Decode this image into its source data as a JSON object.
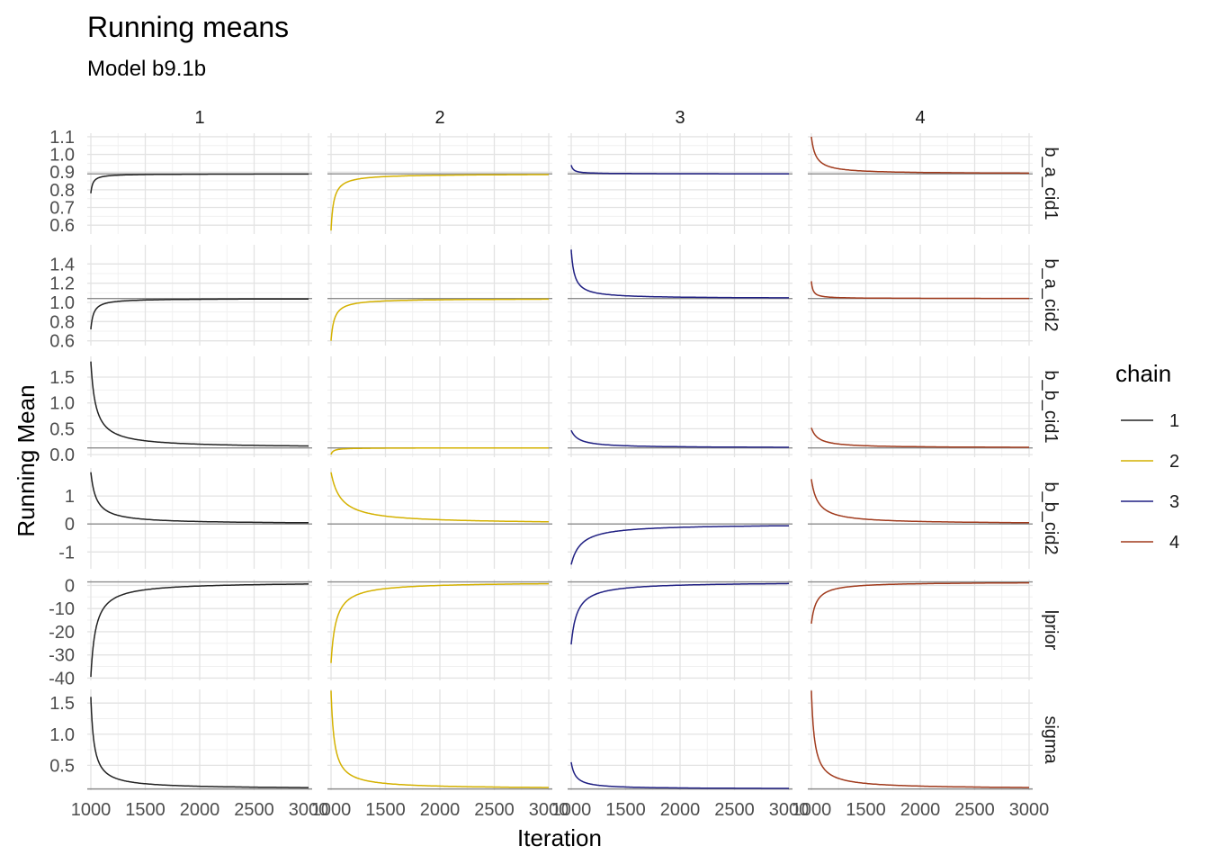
{
  "chart_data": {
    "type": "line",
    "title": "Running means",
    "subtitle": "Model b9.1b",
    "xlabel": "Iteration",
    "ylabel": "Running Mean",
    "x_range": [
      1000,
      3000
    ],
    "x_ticks": [
      1000,
      1500,
      2000,
      2500,
      3000
    ],
    "x_tick_labels": [
      "1000",
      "1500",
      "2000",
      "2500",
      "3000"
    ],
    "grid": true,
    "legend": {
      "title": "chain",
      "position": "right",
      "entries": [
        {
          "label": "1",
          "color": "#222222"
        },
        {
          "label": "2",
          "color": "#d4b100"
        },
        {
          "label": "3",
          "color": "#1f1f82"
        },
        {
          "label": "4",
          "color": "#a03a1c"
        }
      ]
    },
    "columns": [
      "1",
      "2",
      "3",
      "4"
    ],
    "rows": [
      {
        "name": "b_a_cid1",
        "ylim": [
          0.55,
          1.12
        ],
        "y_ticks": [
          0.6,
          0.7,
          0.8,
          0.9,
          1.0,
          1.1
        ],
        "y_tick_labels": [
          "0.6",
          "0.7",
          "0.8",
          "0.9",
          "1.0",
          "1.1"
        ],
        "reference": 0.89,
        "series": [
          {
            "chain": "1",
            "start": 0.78,
            "end": 0.89,
            "tau": 18
          },
          {
            "chain": "2",
            "start": 0.57,
            "end": 0.89,
            "tau": 25
          },
          {
            "chain": "3",
            "start": 0.94,
            "end": 0.89,
            "tau": 20
          },
          {
            "chain": "4",
            "start": 1.1,
            "end": 0.89,
            "tau": 40
          }
        ]
      },
      {
        "name": "b_a_cid2",
        "ylim": [
          0.55,
          1.6
        ],
        "y_ticks": [
          0.6,
          0.8,
          1.0,
          1.2,
          1.4
        ],
        "y_tick_labels": [
          "0.6",
          "0.8",
          "1.0",
          "1.2",
          "1.4"
        ],
        "reference": 1.04,
        "series": [
          {
            "chain": "1",
            "start": 0.72,
            "end": 1.04,
            "tau": 25
          },
          {
            "chain": "2",
            "start": 0.6,
            "end": 1.04,
            "tau": 30
          },
          {
            "chain": "3",
            "start": 1.55,
            "end": 1.04,
            "tau": 30
          },
          {
            "chain": "4",
            "start": 1.22,
            "end": 1.04,
            "tau": 15
          }
        ]
      },
      {
        "name": "b_b_cid1",
        "ylim": [
          -0.05,
          1.9
        ],
        "y_ticks": [
          0.0,
          0.5,
          1.0,
          1.5
        ],
        "y_tick_labels": [
          "0.0",
          "0.5",
          "1.0",
          "1.5"
        ],
        "reference": 0.13,
        "series": [
          {
            "chain": "1",
            "start": 1.8,
            "end": 0.13,
            "tau": 45
          },
          {
            "chain": "2",
            "start": 0.0,
            "end": 0.13,
            "tau": 20
          },
          {
            "chain": "3",
            "start": 0.47,
            "end": 0.13,
            "tau": 70
          },
          {
            "chain": "4",
            "start": 0.52,
            "end": 0.13,
            "tau": 60
          }
        ]
      },
      {
        "name": "b_b_cid2",
        "ylim": [
          -1.6,
          2.0
        ],
        "y_ticks": [
          -1,
          0,
          1
        ],
        "y_tick_labels": [
          "-1",
          "0",
          "1"
        ],
        "reference": 0.0,
        "series": [
          {
            "chain": "1",
            "start": 1.85,
            "end": 0.0,
            "tau": 50
          },
          {
            "chain": "2",
            "start": 1.85,
            "end": 0.0,
            "tau": 90
          },
          {
            "chain": "3",
            "start": -1.45,
            "end": 0.0,
            "tau": 90
          },
          {
            "chain": "4",
            "start": 1.6,
            "end": 0.0,
            "tau": 60
          }
        ]
      },
      {
        "name": "lprior",
        "ylim": [
          -41,
          2.5
        ],
        "y_ticks": [
          -40,
          -30,
          -20,
          -10,
          0
        ],
        "y_tick_labels": [
          "-40",
          "-30",
          "-20",
          "-10",
          "0"
        ],
        "reference": 1.5,
        "series": [
          {
            "chain": "1",
            "start": -39.5,
            "end": 1.5,
            "tau": 45
          },
          {
            "chain": "2",
            "start": -33.5,
            "end": 1.5,
            "tau": 45
          },
          {
            "chain": "3",
            "start": -25.5,
            "end": 1.5,
            "tau": 55
          },
          {
            "chain": "4",
            "start": -16.5,
            "end": 1.5,
            "tau": 45
          }
        ]
      },
      {
        "name": "sigma",
        "ylim": [
          0.1,
          1.72
        ],
        "y_ticks": [
          0.5,
          1.0,
          1.5
        ],
        "y_tick_labels": [
          "0.5",
          "1.0",
          "1.5"
        ],
        "reference": 0.12,
        "series": [
          {
            "chain": "1",
            "start": 1.6,
            "end": 0.12,
            "tau": 30
          },
          {
            "chain": "2",
            "start": 1.7,
            "end": 0.12,
            "tau": 30
          },
          {
            "chain": "3",
            "start": 0.55,
            "end": 0.12,
            "tau": 40
          },
          {
            "chain": "4",
            "start": 1.7,
            "end": 0.12,
            "tau": 30
          }
        ]
      }
    ]
  }
}
